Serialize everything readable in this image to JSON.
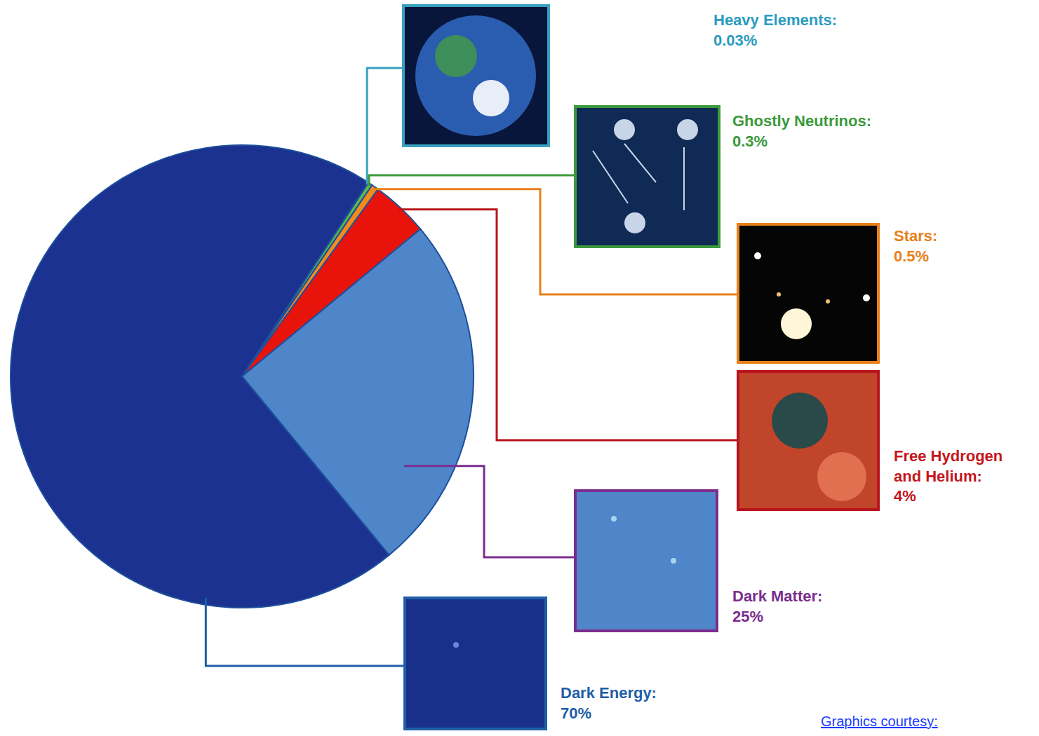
{
  "chart_data": {
    "type": "pie",
    "categories": [
      "Heavy Elements:",
      "Ghostly Neutrinos:",
      "Stars:",
      "Free Hydrogen and Helium:",
      "Dark Matter:",
      "Dark Energy:"
    ],
    "values": [
      0.03,
      0.3,
      0.5,
      4,
      25,
      70
    ],
    "value_labels": [
      "0.03%",
      "0.3%",
      "0.5%",
      "4%",
      "25%",
      "70%"
    ],
    "colors": [
      "#3fb2d4",
      "#5cb84c",
      "#f28a1c",
      "#e8140c",
      "#4f86c9",
      "#1b3290"
    ],
    "data_labels": true,
    "annotations": [
      "Graphics courtesy:"
    ]
  }
}
